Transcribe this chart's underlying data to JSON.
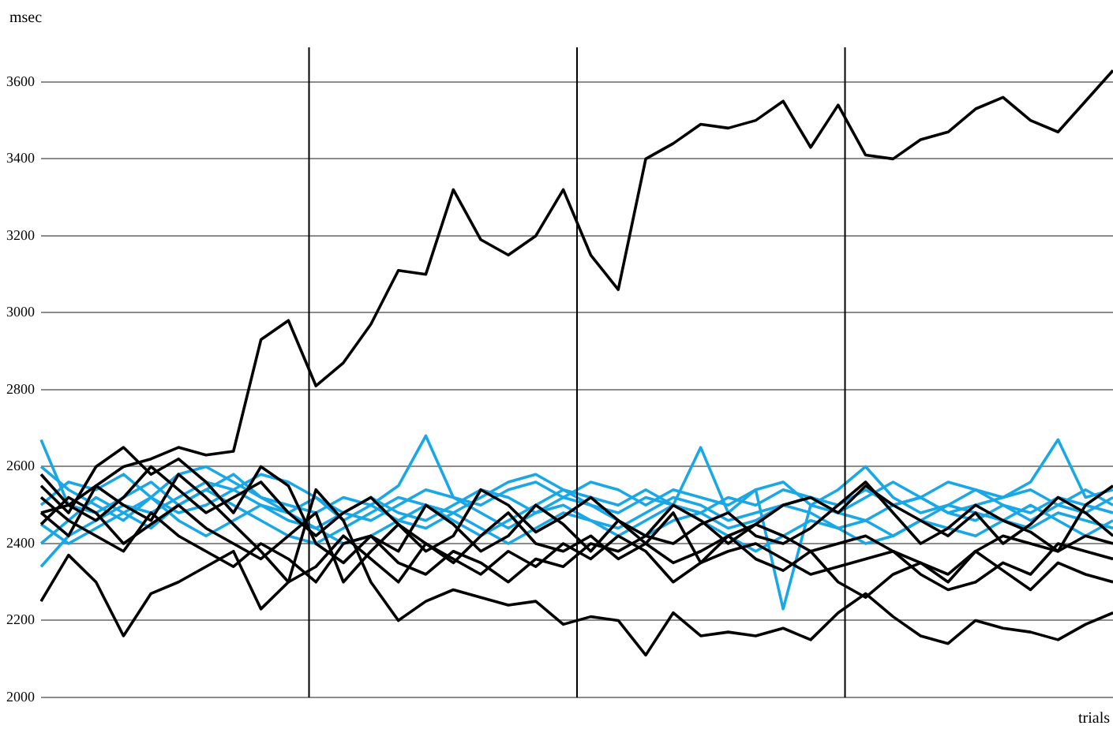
{
  "chart_data": {
    "type": "line",
    "xlabel": "trials",
    "ylabel": "msec",
    "categories": [
      null,
      null,
      null,
      null,
      null,
      null,
      null,
      null,
      null,
      null,
      null,
      null,
      null,
      null,
      null,
      null,
      null,
      null,
      null,
      null,
      null,
      null,
      null,
      null,
      null,
      null,
      null,
      null,
      null,
      null,
      null,
      null,
      null,
      null,
      null,
      null,
      null,
      null,
      null,
      null
    ],
    "ylim": [
      2000,
      3690
    ],
    "yticks": [
      2000,
      2200,
      2400,
      2600,
      2800,
      3000,
      3200,
      3400,
      3600
    ],
    "tick_labels": "y",
    "grid": "y",
    "marker": "none",
    "line_style": "solid",
    "series": [
      {
        "color": "#000000",
        "values": [
          2480,
          2500,
          2550,
          2600,
          2620,
          2650,
          2630,
          2640,
          2930,
          2980,
          2810,
          2870,
          2970,
          3110,
          3100,
          3320,
          3190,
          3150,
          3200,
          3320,
          3150,
          3060,
          3400,
          3440,
          3490,
          3480,
          3500,
          3550,
          3430,
          3540,
          3410,
          3400,
          3450,
          3470,
          3530,
          3560,
          3500,
          3470,
          3550,
          3630
        ]
      },
      {
        "color": "#000000",
        "values": [
          2250,
          2370,
          2300,
          2160,
          2270,
          2300,
          2340,
          2380,
          2230,
          2300,
          2540,
          2460,
          2300,
          2200,
          2250,
          2280,
          2260,
          2240,
          2250,
          2190,
          2210,
          2200,
          2110,
          2220,
          2160,
          2170,
          2160,
          2180,
          2150,
          2220,
          2270,
          2210,
          2160,
          2140,
          2200,
          2180,
          2170,
          2150,
          2190,
          2220
        ]
      },
      {
        "color": "#000000",
        "values": [
          2550,
          2480,
          2600,
          2650,
          2580,
          2620,
          2560,
          2480,
          2600,
          2550,
          2400,
          2350,
          2420,
          2380,
          2500,
          2450,
          2380,
          2420,
          2500,
          2450,
          2380,
          2460,
          2400,
          2480,
          2350,
          2420,
          2450,
          2500,
          2520,
          2480,
          2550,
          2500,
          2460,
          2420,
          2480,
          2400,
          2450,
          2520,
          2480,
          2420
        ]
      },
      {
        "color": "#000000",
        "values": [
          2480,
          2420,
          2550,
          2500,
          2460,
          2580,
          2520,
          2450,
          2380,
          2300,
          2340,
          2420,
          2360,
          2300,
          2400,
          2350,
          2420,
          2480,
          2400,
          2380,
          2420,
          2360,
          2400,
          2350,
          2380,
          2420,
          2360,
          2330,
          2380,
          2300,
          2260,
          2320,
          2350,
          2300,
          2380,
          2330,
          2280,
          2350,
          2320,
          2300
        ]
      },
      {
        "color": "#000000",
        "values": [
          2580,
          2500,
          2460,
          2520,
          2600,
          2540,
          2480,
          2520,
          2560,
          2480,
          2420,
          2480,
          2520,
          2450,
          2380,
          2420,
          2540,
          2500,
          2430,
          2470,
          2520,
          2460,
          2420,
          2500,
          2460,
          2400,
          2450,
          2420,
          2380,
          2400,
          2420,
          2380,
          2350,
          2320,
          2380,
          2420,
          2400,
          2380,
          2420,
          2400
        ]
      },
      {
        "color": "#000000",
        "values": [
          2450,
          2520,
          2480,
          2400,
          2450,
          2500,
          2440,
          2400,
          2360,
          2420,
          2480,
          2300,
          2380,
          2450,
          2400,
          2360,
          2320,
          2380,
          2340,
          2400,
          2360,
          2420,
          2380,
          2300,
          2350,
          2380,
          2400,
          2360,
          2320,
          2340,
          2360,
          2380,
          2320,
          2280,
          2300,
          2350,
          2320,
          2400,
          2380,
          2360
        ]
      },
      {
        "color": "#000000",
        "values": [
          2520,
          2460,
          2420,
          2380,
          2480,
          2420,
          2380,
          2340,
          2400,
          2360,
          2300,
          2400,
          2420,
          2350,
          2320,
          2380,
          2350,
          2300,
          2360,
          2340,
          2400,
          2380,
          2420,
          2400,
          2450,
          2480,
          2420,
          2400,
          2440,
          2500,
          2560,
          2480,
          2400,
          2440,
          2500,
          2460,
          2430,
          2380,
          2500,
          2550
        ]
      },
      {
        "color": "#1aa7e6",
        "values": [
          2670,
          2500,
          2480,
          2520,
          2560,
          2500,
          2540,
          2580,
          2520,
          2480,
          2520,
          2460,
          2500,
          2550,
          2680,
          2520,
          2500,
          2540,
          2560,
          2520,
          2500,
          2480,
          2520,
          2500,
          2650,
          2480,
          2540,
          2230,
          2500,
          2540,
          2600,
          2520,
          2480,
          2500,
          2540,
          2520,
          2560,
          2670,
          2520,
          2540
        ]
      },
      {
        "color": "#1aa7e6",
        "values": [
          2340,
          2420,
          2460,
          2500,
          2480,
          2520,
          2560,
          2540,
          2500,
          2460,
          2440,
          2480,
          2520,
          2480,
          2460,
          2500,
          2540,
          2520,
          2480,
          2500,
          2460,
          2440,
          2480,
          2520,
          2500,
          2460,
          2480,
          2500,
          2520,
          2480,
          2460,
          2500,
          2520,
          2480,
          2460,
          2500,
          2480,
          2520,
          2500,
          2480
        ]
      },
      {
        "color": "#1aa7e6",
        "values": [
          2600,
          2540,
          2500,
          2460,
          2520,
          2580,
          2600,
          2560,
          2520,
          2500,
          2480,
          2520,
          2500,
          2460,
          2440,
          2480,
          2520,
          2560,
          2580,
          2540,
          2520,
          2500,
          2540,
          2500,
          2480,
          2520,
          2500,
          2540,
          2520,
          2500,
          2540,
          2500,
          2520,
          2560,
          2540,
          2500,
          2460,
          2500,
          2540,
          2500
        ]
      },
      {
        "color": "#1aa7e6",
        "values": [
          2400,
          2460,
          2520,
          2480,
          2440,
          2500,
          2540,
          2500,
          2460,
          2420,
          2400,
          2440,
          2480,
          2520,
          2500,
          2460,
          2420,
          2460,
          2500,
          2540,
          2500,
          2460,
          2420,
          2460,
          2480,
          2440,
          2460,
          2500,
          2480,
          2440,
          2460,
          2420,
          2460,
          2500,
          2480,
          2460,
          2440,
          2480,
          2460,
          2440
        ]
      },
      {
        "color": "#1aa7e6",
        "values": [
          2500,
          2560,
          2540,
          2580,
          2520,
          2480,
          2500,
          2540,
          2580,
          2560,
          2520,
          2480,
          2460,
          2500,
          2540,
          2520,
          2480,
          2440,
          2480,
          2520,
          2560,
          2540,
          2500,
          2540,
          2520,
          2500,
          2540,
          2560,
          2500,
          2480,
          2520,
          2560,
          2520,
          2480,
          2500,
          2520,
          2540,
          2500,
          2480,
          2520
        ]
      },
      {
        "color": "#1aa7e6",
        "values": [
          2450,
          2400,
          2440,
          2480,
          2520,
          2460,
          2420,
          2460,
          2500,
          2480,
          2440,
          2400,
          2420,
          2460,
          2500,
          2480,
          2440,
          2400,
          2440,
          2480,
          2460,
          2420,
          2460,
          2500,
          2460,
          2420,
          2380,
          2420,
          2460,
          2440,
          2400,
          2420,
          2460,
          2440,
          2420,
          2460,
          2500,
          2460,
          2420,
          2460
        ]
      }
    ]
  }
}
